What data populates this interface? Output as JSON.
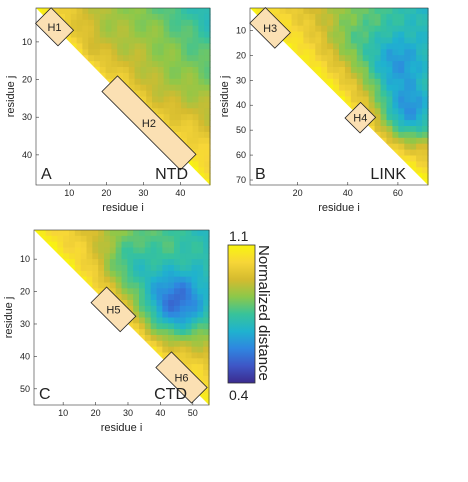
{
  "colormap": [
    "#3b2b8e",
    "#3e56c6",
    "#2f86e0",
    "#1fb2cf",
    "#38c39a",
    "#8cc84a",
    "#d4bb2f",
    "#f7d638",
    "#f9f50f"
  ],
  "helix_fill": "#fbe0b3",
  "helix_stroke": "#222222",
  "colorbar": {
    "title": "Normalized distance",
    "max_label": "1.1",
    "min_label": "0.4",
    "range": [
      0.4,
      1.1
    ]
  },
  "chart_data": [
    {
      "type": "heatmap",
      "panel_letter": "A",
      "region_label": "NTD",
      "xlabel": "residue i",
      "ylabel": "residue j",
      "xlim": [
        1,
        48
      ],
      "ylim": [
        1,
        48
      ],
      "xticks": [
        10,
        20,
        30,
        40
      ],
      "yticks": [
        10,
        20,
        30,
        40
      ],
      "helices": [
        {
          "name": "H1",
          "start": 3,
          "end": 9
        },
        {
          "name": "H2",
          "start": 21,
          "end": 42
        }
      ],
      "blobs": [
        {
          "cx": 18,
          "cy": 10,
          "s": 10,
          "a": 0.12
        },
        {
          "cx": 34,
          "cy": 22,
          "s": 11,
          "a": 0.1
        }
      ]
    },
    {
      "type": "heatmap",
      "panel_letter": "B",
      "region_label": "LINK",
      "xlabel": "residue i",
      "ylabel": "residue j",
      "xlim": [
        1,
        72
      ],
      "ylim": [
        1,
        72
      ],
      "xticks": [
        20,
        40,
        60
      ],
      "yticks": [
        10,
        20,
        30,
        40,
        50,
        60,
        70
      ],
      "helices": [
        {
          "name": "H3",
          "start": 4,
          "end": 14
        },
        {
          "name": "H4",
          "start": 42,
          "end": 48
        }
      ],
      "blobs": [
        {
          "cx": 58,
          "cy": 24,
          "s": 14,
          "a": 0.35
        },
        {
          "cx": 64,
          "cy": 44,
          "s": 12,
          "a": 0.45
        },
        {
          "cx": 40,
          "cy": 14,
          "s": 10,
          "a": 0.12
        }
      ]
    },
    {
      "type": "heatmap",
      "panel_letter": "C",
      "region_label": "CTD",
      "xlabel": "residue i",
      "ylabel": "residue j",
      "xlim": [
        1,
        55
      ],
      "ylim": [
        1,
        55
      ],
      "xticks": [
        10,
        20,
        30,
        40,
        50
      ],
      "yticks": [
        10,
        20,
        30,
        40,
        50
      ],
      "helices": [
        {
          "name": "H5",
          "start": 21,
          "end": 30
        },
        {
          "name": "H6",
          "start": 41,
          "end": 52
        }
      ],
      "blobs": [
        {
          "cx": 44,
          "cy": 24,
          "s": 11,
          "a": 0.55
        },
        {
          "cx": 30,
          "cy": 12,
          "s": 9,
          "a": 0.25
        }
      ]
    }
  ]
}
